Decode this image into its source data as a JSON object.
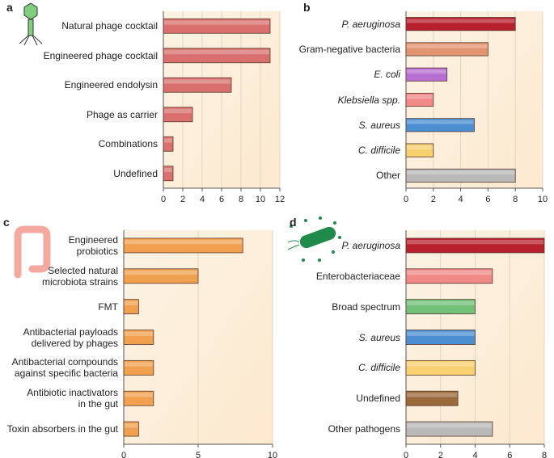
{
  "chart_data": [
    {
      "type": "bar",
      "orientation": "horizontal",
      "panel": "a",
      "categories": [
        "Natural phage cocktail",
        "Engineered phage cocktail",
        "Engineered endolysin",
        "Phage as carrier",
        "Combinations",
        "Undefined"
      ],
      "values": [
        11,
        11,
        7,
        3,
        1,
        1
      ],
      "color": "#d9706e",
      "xlim": [
        0,
        12
      ],
      "xticks": [
        0,
        2,
        4,
        6,
        8,
        10,
        12
      ],
      "grid": true
    },
    {
      "type": "bar",
      "orientation": "horizontal",
      "panel": "b",
      "categories": [
        "P. aeruginosa",
        "Gram-negative bacteria",
        "E. coli",
        "Klebsiella spp.",
        "S. aureus",
        "C. difficile",
        "Other"
      ],
      "values": [
        8,
        6,
        3,
        2,
        5,
        2,
        8
      ],
      "colors": [
        "#b8202e",
        "#e39470",
        "#b86fd2",
        "#f28a8a",
        "#4b8fd2",
        "#f7d070",
        "#b9b9b9"
      ],
      "xlim": [
        0,
        10
      ],
      "xticks": [
        0,
        2,
        4,
        6,
        8,
        10
      ],
      "grid": true
    },
    {
      "type": "bar",
      "orientation": "horizontal",
      "panel": "c",
      "categories": [
        "Engineered\nprobiotics",
        "Selected natural\nmicrobiota strains",
        "FMT",
        "Antibacterial payloads\ndelivered by phages",
        "Antibacterial compounds\nagainst specific bacteria",
        "Antibiotic inactivators\nin the gut",
        "Toxin absorbers in the gut"
      ],
      "values": [
        8,
        5,
        1,
        2,
        2,
        2,
        1
      ],
      "color": "#f0a04e",
      "xlim": [
        0,
        10
      ],
      "xticks": [
        0,
        5,
        10
      ],
      "grid": true
    },
    {
      "type": "bar",
      "orientation": "horizontal",
      "panel": "d",
      "categories": [
        "P. aeruginosa",
        "Enterobacteriaceae",
        "Broad spectrum",
        "S. aureus",
        "C. difficile",
        "Undefined",
        "Other pathogens"
      ],
      "values": [
        8,
        5,
        4,
        4,
        4,
        3,
        5
      ],
      "colors": [
        "#b8202e",
        "#f28a8a",
        "#72c07a",
        "#4b8fd2",
        "#f7d070",
        "#9a6a3a",
        "#b9b9b9"
      ],
      "xlim": [
        0,
        8
      ],
      "xticks": [
        0,
        2,
        4,
        6,
        8
      ],
      "grid": true
    }
  ]
}
